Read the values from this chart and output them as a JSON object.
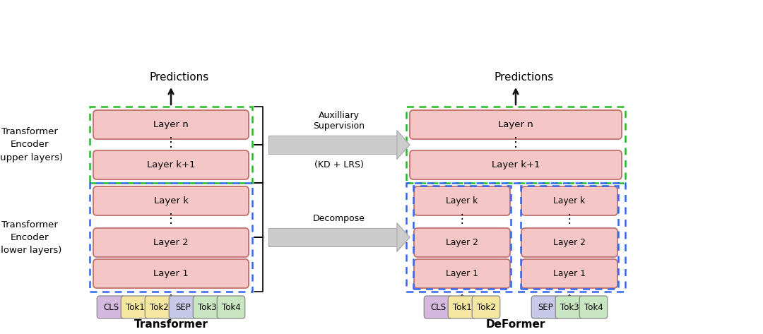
{
  "bg_color": "#ffffff",
  "layer_fill": "#f5c6c6",
  "layer_edge": "#c07070",
  "token_colors": {
    "CLS": "#d4b8e0",
    "Tok1": "#f5e6a0",
    "Tok2": "#f5e6a0",
    "SEP": "#c8c8e8",
    "Tok3": "#c8e6c0",
    "Tok4": "#c8e6c0"
  },
  "green_dash_color": "#22bb22",
  "blue_dash_color": "#3366ee",
  "arrow_color": "#111111",
  "title_transformer": "Transformer",
  "title_deformer": "DeFormer",
  "predictions_text": "Predictions",
  "upper_label": "Transformer\nEncoder\n(upper layers)",
  "lower_label": "Transformer\nEncoder\n(lower layers)",
  "layers_upper": [
    "Layer n",
    "Layer k+1"
  ],
  "layers_lower": [
    "Layer k",
    "Layer 2",
    "Layer 1"
  ],
  "aux_label1": "Auxilliary",
  "aux_label2": "Supervision",
  "kd_label": "(KD + LRS)",
  "decompose_label": "Decompose"
}
